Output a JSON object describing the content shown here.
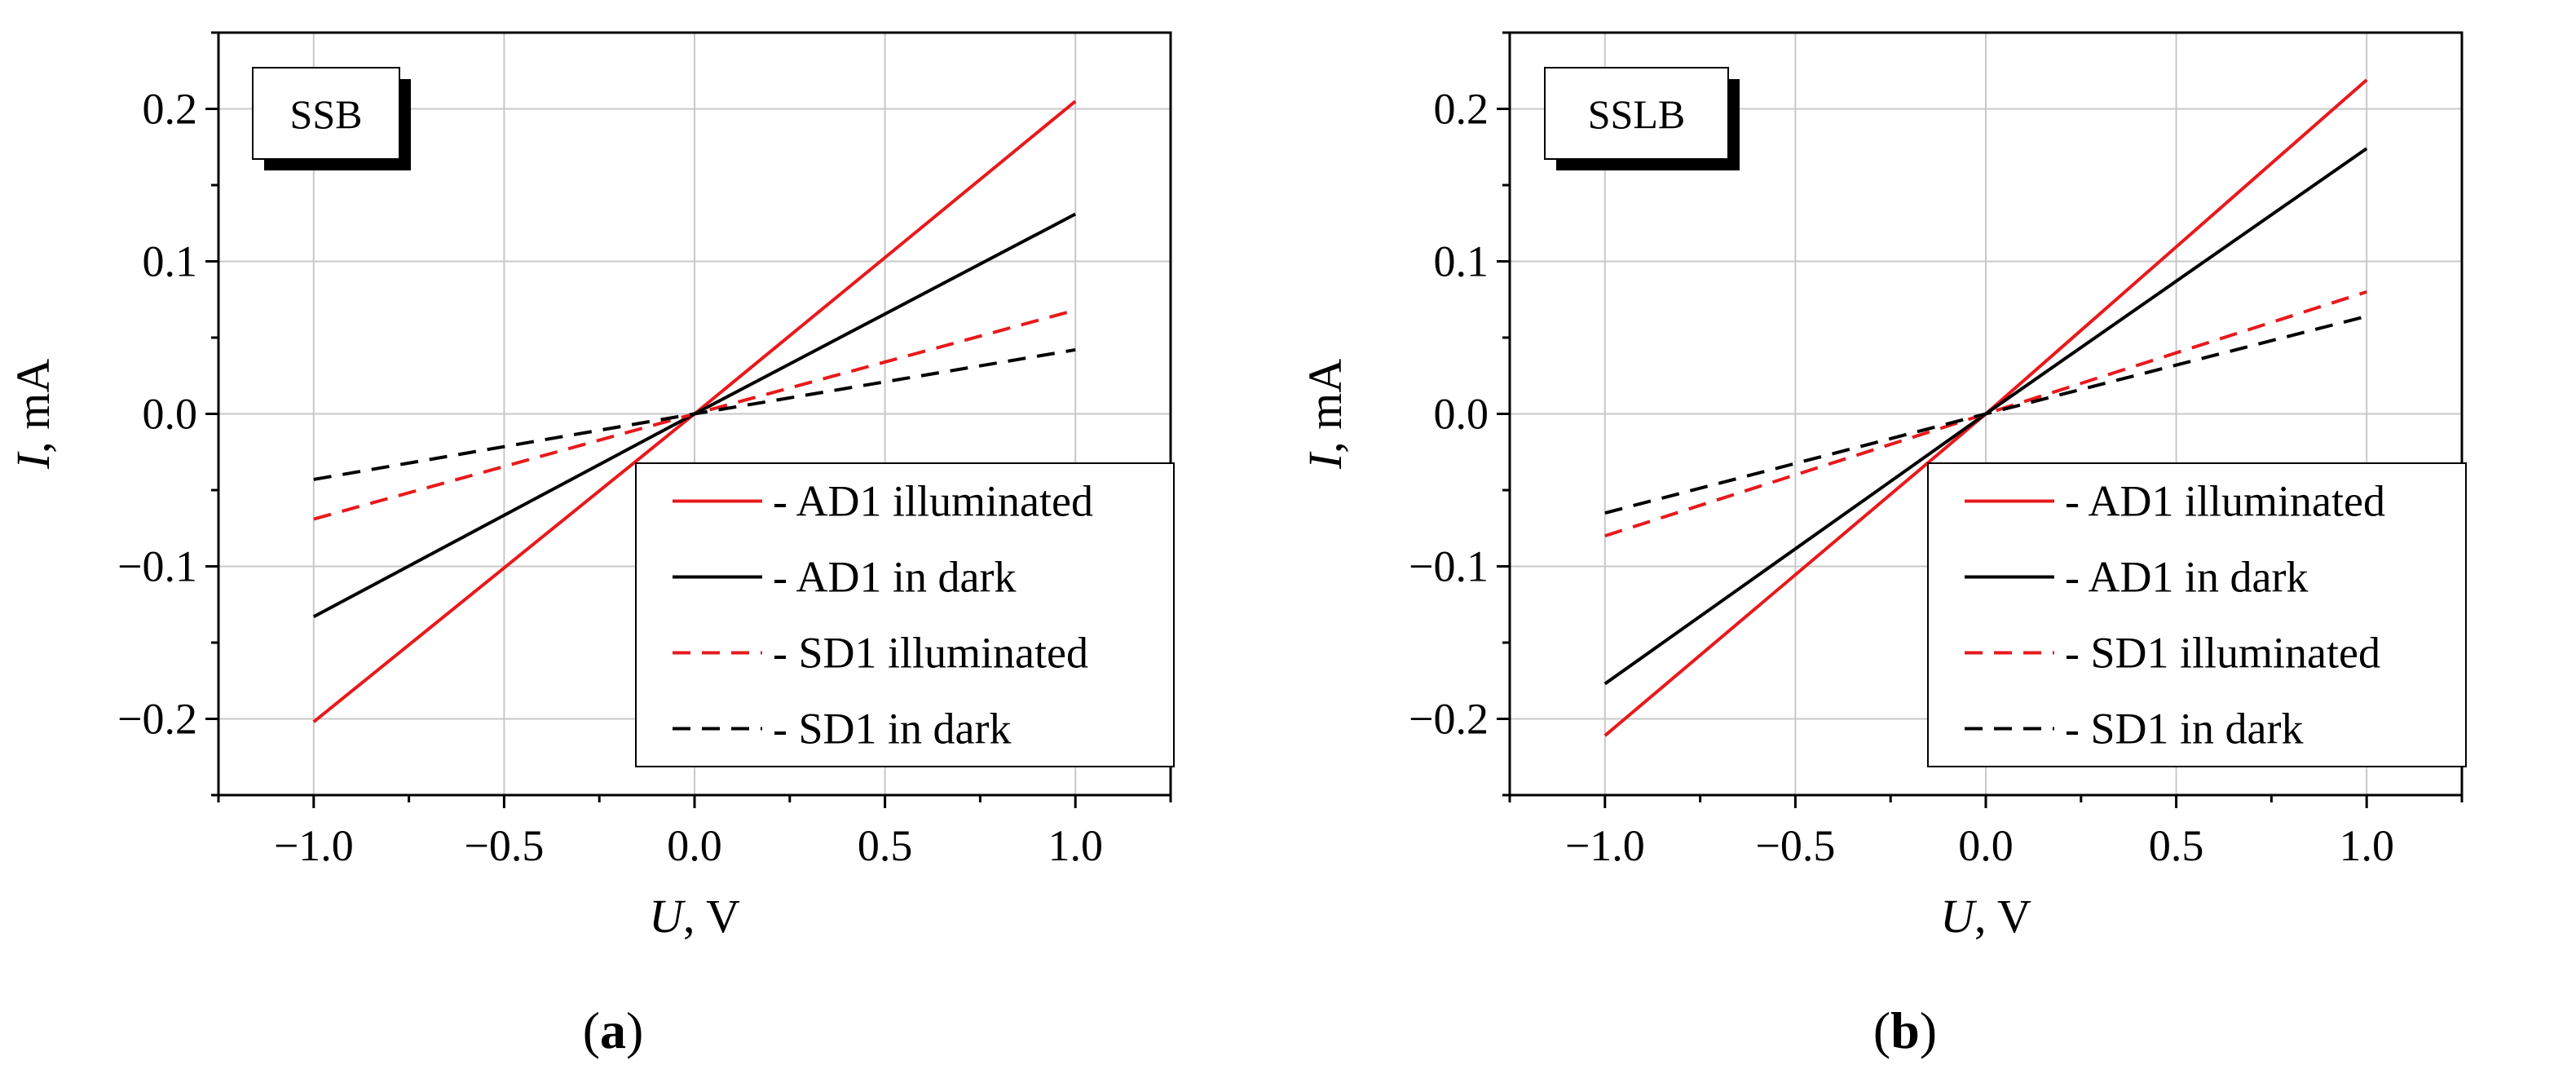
{
  "colors": {
    "illuminated": "#e8191c",
    "dark": "#000000",
    "grid": "#c8c8c8",
    "axis": "#000000"
  },
  "chart_data": [
    {
      "type": "line",
      "tag": "SSB",
      "panel_label": "a",
      "xlabel_var": "U",
      "xlabel_unit": ", V",
      "ylabel_var": "I",
      "ylabel_unit": ", mA",
      "xlim": [
        -1.25,
        1.25
      ],
      "ylim": [
        -0.25,
        0.25
      ],
      "xticks": [
        -1.0,
        -0.5,
        0.0,
        0.5,
        1.0
      ],
      "xtick_labels": [
        "−1.0",
        "−0.5",
        "0.0",
        "0.5",
        "1.0"
      ],
      "yticks": [
        -0.2,
        -0.1,
        0.0,
        0.1,
        0.2
      ],
      "ytick_labels": [
        "−0.2",
        "−0.1",
        "0.0",
        "0.1",
        "0.2"
      ],
      "grid": true,
      "legend_position": "bottom-right",
      "series": [
        {
          "name": "- AD1 illuminated",
          "color": "illuminated",
          "dash": "solid",
          "x": [
            -1.0,
            0.0,
            1.0
          ],
          "y": [
            -0.202,
            0.0,
            0.205
          ]
        },
        {
          "name": "- AD1 in dark",
          "color": "dark",
          "dash": "solid",
          "x": [
            -1.0,
            0.0,
            1.0
          ],
          "y": [
            -0.133,
            0.0,
            0.131
          ]
        },
        {
          "name": "- SD1 illuminated",
          "color": "illuminated",
          "dash": "dashed",
          "x": [
            -1.0,
            0.0,
            1.0
          ],
          "y": [
            -0.069,
            0.0,
            0.068
          ]
        },
        {
          "name": "- SD1 in dark",
          "color": "dark",
          "dash": "dashed",
          "x": [
            -1.0,
            0.0,
            1.0
          ],
          "y": [
            -0.043,
            0.0,
            0.042
          ]
        }
      ]
    },
    {
      "type": "line",
      "tag": "SSLB",
      "panel_label": "b",
      "xlabel_var": "U",
      "xlabel_unit": ", V",
      "ylabel_var": "I",
      "ylabel_unit": ", mA",
      "xlim": [
        -1.25,
        1.25
      ],
      "ylim": [
        -0.25,
        0.25
      ],
      "xticks": [
        -1.0,
        -0.5,
        0.0,
        0.5,
        1.0
      ],
      "xtick_labels": [
        "−1.0",
        "−0.5",
        "0.0",
        "0.5",
        "1.0"
      ],
      "yticks": [
        -0.2,
        -0.1,
        0.0,
        0.1,
        0.2
      ],
      "ytick_labels": [
        "−0.2",
        "−0.1",
        "0.0",
        "0.1",
        "0.2"
      ],
      "grid": true,
      "legend_position": "bottom-right",
      "series": [
        {
          "name": "- AD1 illuminated",
          "color": "illuminated",
          "dash": "solid",
          "x": [
            -1.0,
            0.0,
            1.0
          ],
          "y": [
            -0.211,
            0.0,
            0.219
          ]
        },
        {
          "name": "- AD1 in dark",
          "color": "dark",
          "dash": "solid",
          "x": [
            -1.0,
            0.0,
            1.0
          ],
          "y": [
            -0.177,
            0.0,
            0.174
          ]
        },
        {
          "name": "- SD1 illuminated",
          "color": "illuminated",
          "dash": "dashed",
          "x": [
            -1.0,
            0.0,
            1.0
          ],
          "y": [
            -0.08,
            0.0,
            0.08
          ]
        },
        {
          "name": "- SD1 in dark",
          "color": "dark",
          "dash": "dashed",
          "x": [
            -1.0,
            0.0,
            1.0
          ],
          "y": [
            -0.065,
            0.0,
            0.064
          ]
        }
      ]
    }
  ]
}
